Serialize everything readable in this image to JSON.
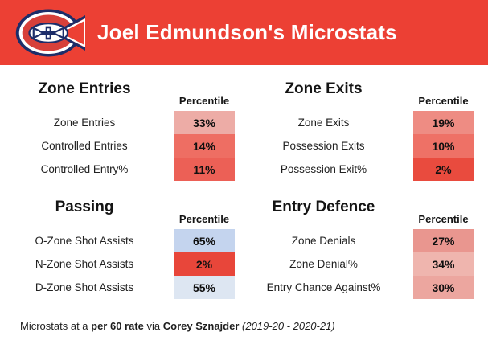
{
  "header": {
    "title": "Joel Edmundson's Microstats",
    "bg_color": "#ec4034",
    "logo_icon": "montreal-canadiens-logo"
  },
  "sections": [
    {
      "title": "Zone Entries",
      "column_header": "Percentile",
      "rows": [
        {
          "label": "Zone Entries",
          "value": "33%",
          "color": "#edaca6"
        },
        {
          "label": "Controlled Entries",
          "value": "14%",
          "color": "#ee6e63"
        },
        {
          "label": "Controlled Entry%",
          "value": "11%",
          "color": "#ec6056",
          "texture": "dotted"
        }
      ]
    },
    {
      "title": "Zone Exits",
      "column_header": "Percentile",
      "rows": [
        {
          "label": "Zone Exits",
          "value": "19%",
          "color": "#ee8c83"
        },
        {
          "label": "Possession Exits",
          "value": "10%",
          "color": "#ee7166"
        },
        {
          "label": "Possession Exit%",
          "value": "2%",
          "color": "#e94b3e"
        }
      ]
    },
    {
      "title": "Passing",
      "column_header": "Percentile",
      "rows": [
        {
          "label": "O-Zone Shot Assists",
          "value": "65%",
          "color": "#c4d4ee"
        },
        {
          "label": "N-Zone Shot Assists",
          "value": "2%",
          "color": "#e8463a"
        },
        {
          "label": "D-Zone Shot Assists",
          "value": "55%",
          "color": "#dde6f2"
        }
      ]
    },
    {
      "title": "Entry Defence",
      "column_header": "Percentile",
      "rows": [
        {
          "label": "Zone Denials",
          "value": "27%",
          "color": "#e9968f"
        },
        {
          "label": "Zone Denial%",
          "value": "34%",
          "color": "#efb5ae"
        },
        {
          "label": "Entry Chance Against%",
          "value": "30%",
          "color": "#eca69f"
        }
      ]
    }
  ],
  "footer": {
    "segments": [
      {
        "text": "Microstats at a ",
        "style": "regular"
      },
      {
        "text": "per 60 rate",
        "style": "bold"
      },
      {
        "text": " via ",
        "style": "regular"
      },
      {
        "text": "Corey Sznajder",
        "style": "bold"
      },
      {
        "text": " (2019-20 - 2020-21)",
        "style": "italic"
      }
    ]
  },
  "chart_data": {
    "type": "table",
    "title": "Joel Edmundson's Microstats",
    "subtitle": "Microstats at a per 60 rate via Corey Sznajder (2019-20 - 2020-21)",
    "value_column": "Percentile",
    "color_scale": "red (low percentile) to blue (high percentile)",
    "sections": [
      {
        "name": "Zone Entries",
        "metrics": [
          "Zone Entries",
          "Controlled Entries",
          "Controlled Entry%"
        ],
        "percentiles": [
          33,
          14,
          11
        ]
      },
      {
        "name": "Zone Exits",
        "metrics": [
          "Zone Exits",
          "Possession Exits",
          "Possession Exit%"
        ],
        "percentiles": [
          19,
          10,
          2
        ]
      },
      {
        "name": "Passing",
        "metrics": [
          "O-Zone Shot Assists",
          "N-Zone Shot Assists",
          "D-Zone Shot Assists"
        ],
        "percentiles": [
          65,
          2,
          55
        ]
      },
      {
        "name": "Entry Defence",
        "metrics": [
          "Zone Denials",
          "Zone Denial%",
          "Entry Chance Against%"
        ],
        "percentiles": [
          27,
          34,
          30
        ]
      }
    ]
  }
}
